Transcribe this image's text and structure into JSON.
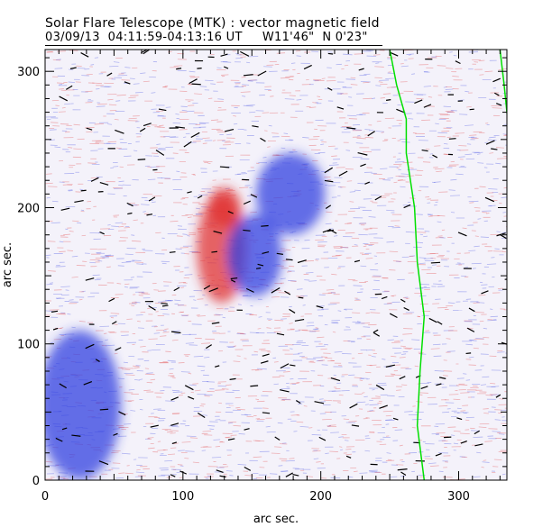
{
  "header": {
    "title": "Solar Flare Telescope (MTK) : vector magnetic field",
    "subtitle": "03/09/13  04:11:59-04:13:16 UT     W11'46\"  N 0'23\""
  },
  "chart_data": {
    "type": "heatmap",
    "description_kind": "vector magnetogram",
    "xlabel": "arc sec.",
    "ylabel": "arc sec.",
    "xlim": [
      0,
      335
    ],
    "ylim": [
      0,
      316
    ],
    "xticks": [
      0,
      100,
      200,
      300
    ],
    "yticks": [
      0,
      100,
      200,
      300
    ],
    "colors": {
      "positive": "#e03030",
      "negative": "#3040e0",
      "contour": "#00e000",
      "vectors": "#000000"
    },
    "regions": [
      {
        "polarity": "positive",
        "x": 128,
        "y": 170,
        "rx": 18,
        "ry": 40
      },
      {
        "polarity": "positive",
        "x": 130,
        "y": 200,
        "rx": 12,
        "ry": 15
      },
      {
        "polarity": "negative",
        "x": 178,
        "y": 210,
        "rx": 25,
        "ry": 30
      },
      {
        "polarity": "negative",
        "x": 152,
        "y": 165,
        "rx": 20,
        "ry": 30
      },
      {
        "polarity": "negative",
        "x": 25,
        "y": 55,
        "rx": 30,
        "ry": 55
      }
    ],
    "contours": [
      [
        [
          250,
          316
        ],
        [
          255,
          290
        ],
        [
          262,
          265
        ],
        [
          262,
          240
        ],
        [
          268,
          200
        ],
        [
          270,
          160
        ],
        [
          275,
          120
        ],
        [
          272,
          80
        ],
        [
          270,
          40
        ],
        [
          275,
          0
        ]
      ],
      [
        [
          330,
          316
        ],
        [
          333,
          290
        ],
        [
          337,
          250
        ]
      ]
    ]
  }
}
